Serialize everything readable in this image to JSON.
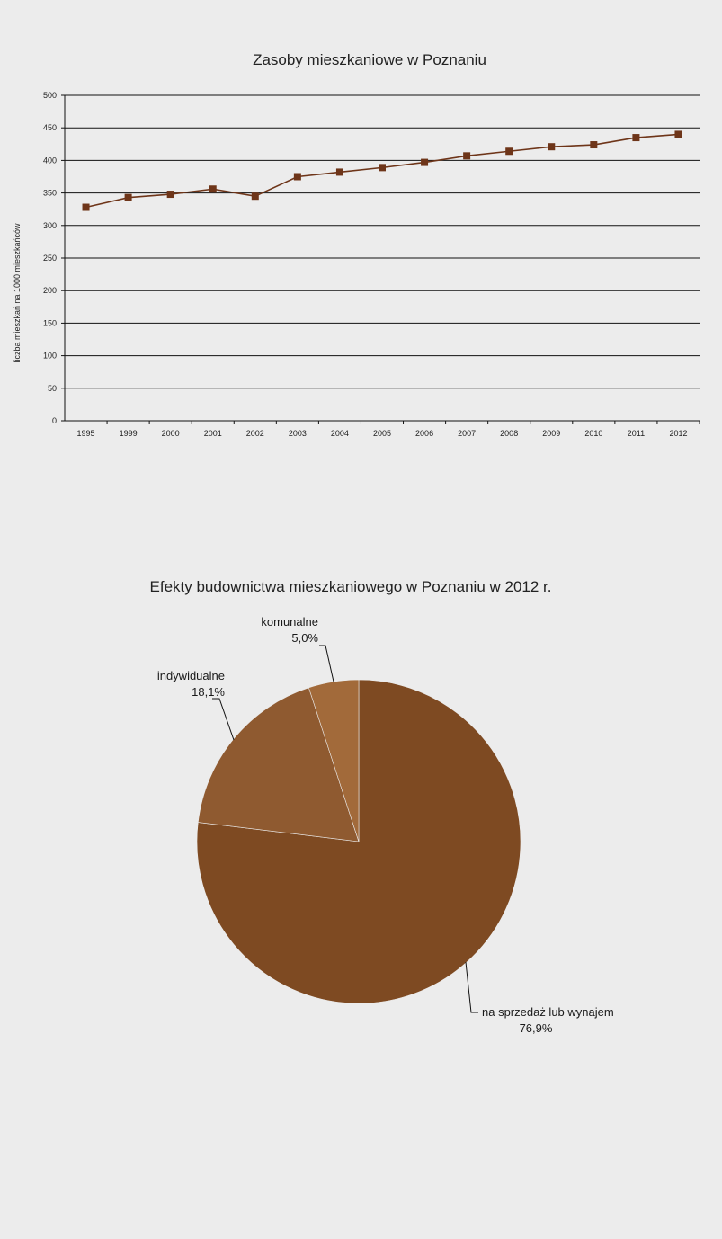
{
  "chart_data": [
    {
      "type": "line",
      "title": "Zasoby mieszkaniowe w Poznaniu",
      "xlabel": "",
      "ylabel": "liczba mieszkań na 1000 mieszkańców",
      "categories": [
        "1995",
        "1999",
        "2000",
        "2001",
        "2002",
        "2003",
        "2004",
        "2005",
        "2006",
        "2007",
        "2008",
        "2009",
        "2010",
        "2011",
        "2012"
      ],
      "series": [
        {
          "values": [
            328,
            343,
            348,
            356,
            345,
            375,
            382,
            389,
            397,
            407,
            414,
            421,
            424,
            435,
            440
          ]
        }
      ],
      "ylim": [
        0,
        500
      ],
      "yticks": [
        0,
        50,
        100,
        150,
        200,
        250,
        300,
        350,
        400,
        450,
        500
      ],
      "grid": true,
      "color": "#6e3519"
    },
    {
      "type": "pie",
      "title": "Efekty budownictwa mieszkaniowego w Poznaniu w 2012 r.",
      "slices": [
        {
          "label": "na sprzedaż lub wynajem",
          "value_label": "76,9%",
          "value": 76.9,
          "color": "#7e4a22"
        },
        {
          "label": "indywidualne",
          "value_label": "18,1%",
          "value": 18.1,
          "color": "#8f5a30"
        },
        {
          "label": "komunalne",
          "value_label": "5,0%",
          "value": 5.0,
          "color": "#a26a3a"
        }
      ]
    }
  ]
}
